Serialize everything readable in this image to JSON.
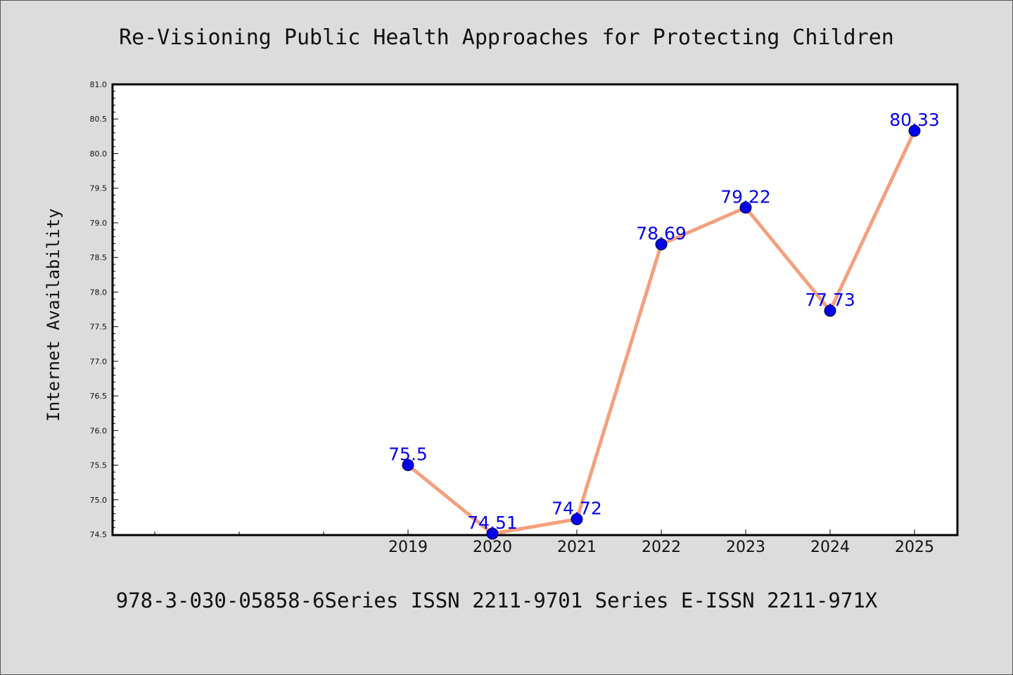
{
  "chart_data": {
    "type": "line",
    "title": "Re-Visioning Public Health Approaches for Protecting Children",
    "footer": "978-3-030-05858-6Series ISSN 2211-9701 Series E-ISSN 2211-971X",
    "xlabel": "",
    "ylabel": "Internet Availability",
    "ylim": [
      74.5,
      81.0
    ],
    "ytick_labels": [
      "74.5",
      "75.0",
      "75.5",
      "76.0",
      "76.5",
      "77.0",
      "77.5",
      "78.0",
      "78.5",
      "79.0",
      "79.5",
      "80.0",
      "80.5",
      "81.0"
    ],
    "categories": [
      "2019",
      "2020",
      "2021",
      "2022",
      "2023",
      "2024",
      "2025"
    ],
    "values": [
      75.5,
      74.51,
      74.72,
      78.69,
      79.22,
      77.73,
      80.33
    ],
    "data_labels": [
      "75.5",
      "74.51",
      "74.72",
      "78.69",
      "79.22",
      "77.73",
      "80.33"
    ],
    "grid": false,
    "legend": "none",
    "colors": {
      "line": "#f4a07e",
      "marker": "#0000ee",
      "label": "#0000ee",
      "background": "#dcdcdc",
      "plot_background": "#ffffff"
    }
  }
}
